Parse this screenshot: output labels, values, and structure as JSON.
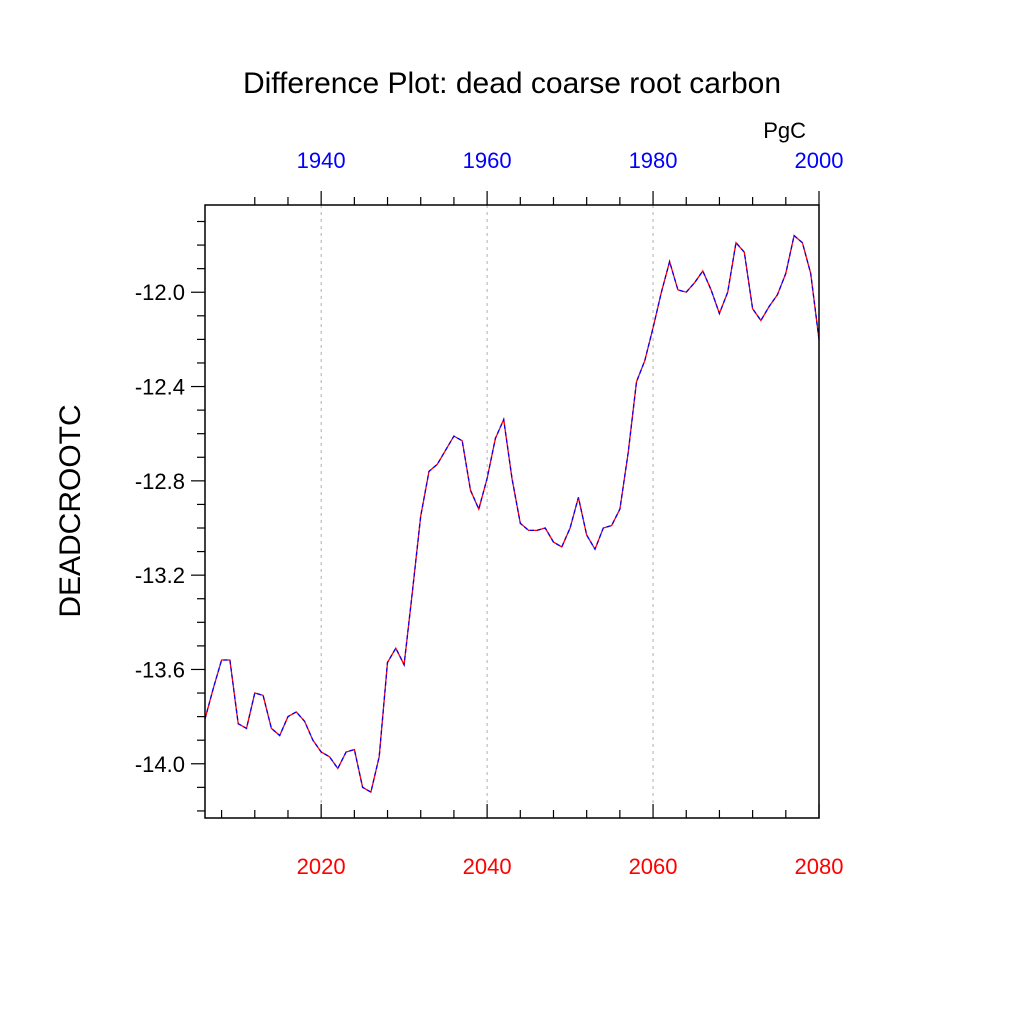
{
  "chart_data": {
    "type": "line",
    "title": "Difference Plot: dead coarse root carbon",
    "units": "PgC",
    "ylabel": "DEADCROOTC",
    "xlabel": "",
    "xlim": [
      2006,
      2080
    ],
    "ylim": [
      -14.23,
      -11.63
    ],
    "yticks": [
      -12.0,
      -12.4,
      -12.8,
      -13.2,
      -13.6,
      -14.0
    ],
    "ytick_labels": [
      "-12.0",
      "-12.4",
      "-12.8",
      "-13.2",
      "-13.6",
      "-14.0"
    ],
    "xticks_bottom": [
      2020,
      2040,
      2060,
      2080
    ],
    "xticks_bottom_labels": [
      "2020",
      "2040",
      "2060",
      "2080"
    ],
    "xticks_bottom_color": "#ff0000",
    "xticks_top": [
      1940,
      1960,
      1980,
      2000
    ],
    "xticks_top_labels": [
      "1940",
      "1960",
      "1980",
      "2000"
    ],
    "xticks_top_color": "#0000ff",
    "top_axis_offset_years": 80,
    "grid": "vertical dashed at 2020, 2040, 2060",
    "line_colors": [
      "#ff0000",
      "#0000ff"
    ],
    "x": [
      2006,
      2007,
      2008,
      2009,
      2010,
      2011,
      2012,
      2013,
      2014,
      2015,
      2016,
      2017,
      2018,
      2019,
      2020,
      2021,
      2022,
      2023,
      2024,
      2025,
      2026,
      2027,
      2028,
      2029,
      2030,
      2031,
      2032,
      2033,
      2034,
      2035,
      2036,
      2037,
      2038,
      2039,
      2040,
      2041,
      2042,
      2043,
      2044,
      2045,
      2046,
      2047,
      2048,
      2049,
      2050,
      2051,
      2052,
      2053,
      2054,
      2055,
      2056,
      2057,
      2058,
      2059,
      2060,
      2061,
      2062,
      2063,
      2064,
      2065,
      2066,
      2067,
      2068,
      2069,
      2070,
      2071,
      2072,
      2073,
      2074,
      2075,
      2076,
      2077,
      2078,
      2079,
      2080
    ],
    "series": [
      {
        "values": [
          -13.81,
          -13.68,
          -13.56,
          -13.56,
          -13.83,
          -13.85,
          -13.7,
          -13.71,
          -13.85,
          -13.88,
          -13.8,
          -13.78,
          -13.82,
          -13.9,
          -13.95,
          -13.97,
          -14.02,
          -13.95,
          -13.94,
          -14.1,
          -14.12,
          -13.97,
          -13.57,
          -13.51,
          -13.58,
          -13.27,
          -12.95,
          -12.76,
          -12.73,
          -12.67,
          -12.61,
          -12.63,
          -12.84,
          -12.92,
          -12.79,
          -12.62,
          -12.54,
          -12.79,
          -12.98,
          -13.01,
          -13.01,
          -13.0,
          -13.06,
          -13.08,
          -13.0,
          -12.87,
          -13.03,
          -13.09,
          -13.0,
          -12.99,
          -12.92,
          -12.68,
          -12.38,
          -12.29,
          -12.15,
          -12.0,
          -11.87,
          -11.99,
          -12.0,
          -11.96,
          -11.91,
          -11.99,
          -12.09,
          -12.0,
          -11.79,
          -11.83,
          -12.07,
          -12.12,
          -12.06,
          -12.01,
          -11.92,
          -11.76,
          -11.79,
          -11.92,
          -12.2
        ]
      }
    ]
  }
}
